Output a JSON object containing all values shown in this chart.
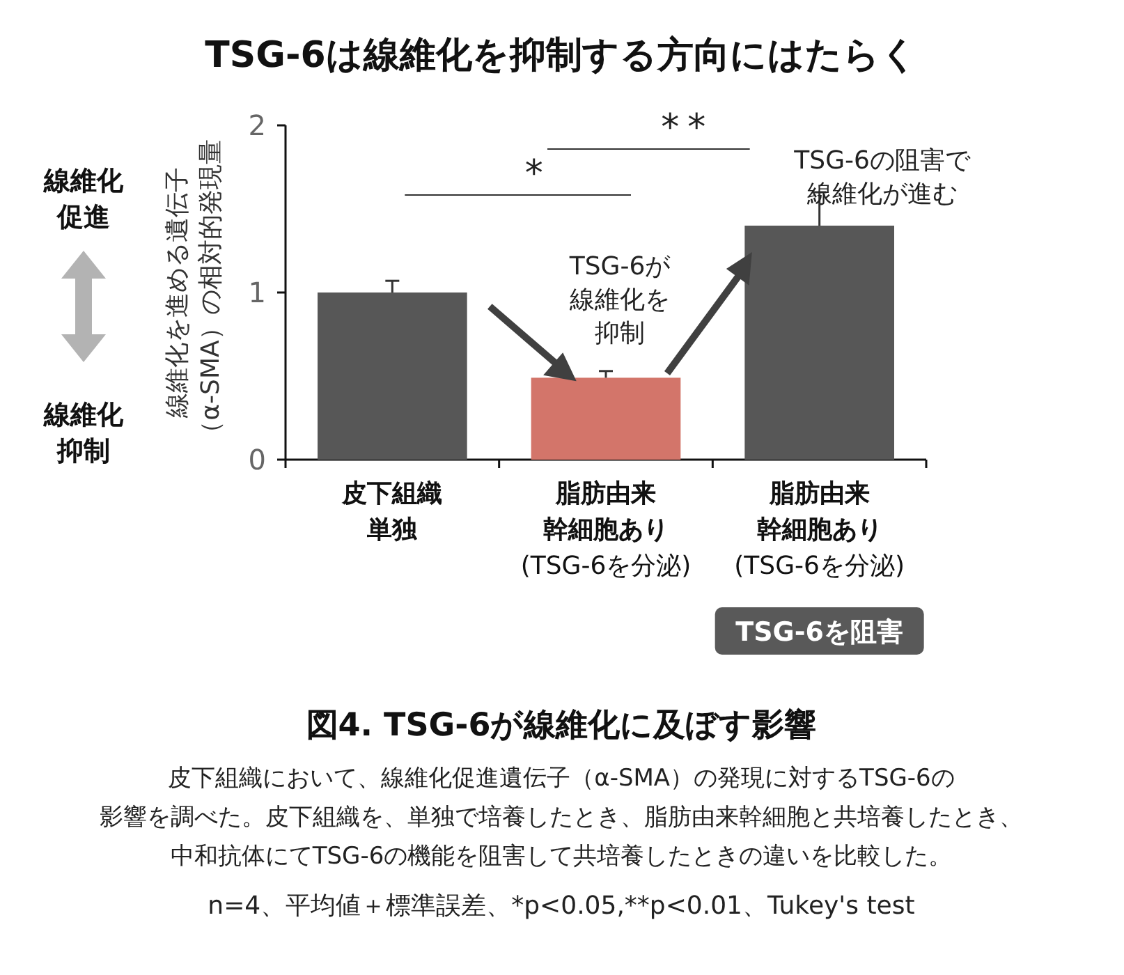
{
  "chart_data": {
    "type": "bar",
    "title": "TSG-6は線維化を抑制する方向にはたらく",
    "categories": [
      "皮下組織単独",
      "脂肪由来幹細胞あり(TSG-6を分泌)",
      "脂肪由来幹細胞あり(TSG-6を分泌)"
    ],
    "values": [
      1.0,
      0.49,
      1.4
    ],
    "errors": [
      [
        1.0,
        1.07
      ],
      [
        0.49,
        0.53
      ],
      [
        1.4,
        1.6
      ]
    ],
    "colors": [
      "#575757",
      "#d3756a",
      "#575757"
    ],
    "ylabel": "線維化を進める遺伝子（α-SMA）の相対的発現量",
    "ylim": [
      0,
      2
    ],
    "yticks": [
      0,
      1,
      2
    ],
    "annotations": [
      "*",
      "**",
      "TSG-6が線維化を抑制",
      "TSG-6の阻害で線維化が進む",
      "TSG-6を阻害",
      "線維化促進",
      "線維化抑制",
      "図4. TSG-6が線維化に及ぼす影響",
      "皮下組織において、線維化促進遺伝子（α-SMA）の発現に対するTSG-6の影響を調べた。皮下組織を、単独で培養したとき、脂肪由来幹細胞と共培養したとき、中和抗体にてTSG-6の機能を阻害して共培養したときの違いを比較した。",
      "n=4、平均値＋標準誤差、*p<0.05,**p<0.01、Tukey's test"
    ]
  }
}
